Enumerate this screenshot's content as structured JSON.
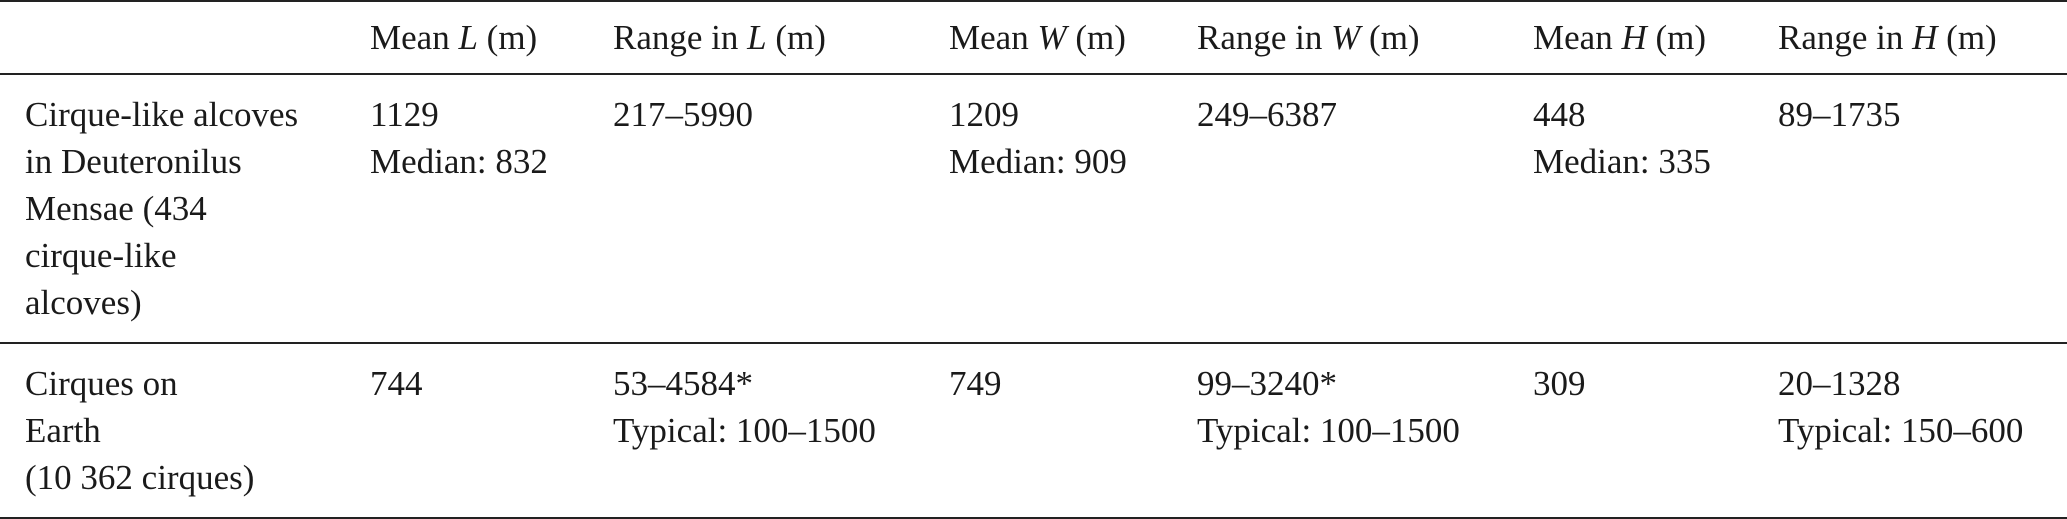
{
  "table": {
    "headers": [
      {
        "prefix": "",
        "var": "",
        "suffix": ""
      },
      {
        "prefix": "Mean ",
        "var": "L",
        "suffix": " (m)"
      },
      {
        "prefix": "Range in ",
        "var": "L",
        "suffix": " (m)"
      },
      {
        "prefix": "Mean ",
        "var": "W",
        "suffix": " (m)"
      },
      {
        "prefix": "Range in ",
        "var": "W",
        "suffix": " (m)"
      },
      {
        "prefix": "Mean ",
        "var": "H",
        "suffix": " (m)"
      },
      {
        "prefix": "Range in ",
        "var": "H",
        "suffix": " (m)"
      }
    ],
    "rows": [
      {
        "label_lines": [
          "Cirque-like alcoves",
          "in Deuteronilus",
          "Mensae (434",
          "cirque-like",
          "alcoves)"
        ],
        "mean_l": [
          "1129",
          "Median: 832"
        ],
        "range_l": [
          "217–5990"
        ],
        "mean_w": [
          "1209",
          "Median: 909"
        ],
        "range_w": [
          "249–6387"
        ],
        "mean_h": [
          "448",
          "Median: 335"
        ],
        "range_h": [
          "89–1735"
        ]
      },
      {
        "label_lines": [
          "Cirques on",
          "Earth",
          "(10 362 cirques)"
        ],
        "mean_l": [
          "744"
        ],
        "range_l": [
          "53–4584*",
          "Typical: 100–1500"
        ],
        "mean_w": [
          "749"
        ],
        "range_w": [
          "99–3240*",
          "Typical: 100–1500"
        ],
        "mean_h": [
          "309"
        ],
        "range_h": [
          "20–1328",
          "Typical: 150–600"
        ]
      }
    ]
  }
}
